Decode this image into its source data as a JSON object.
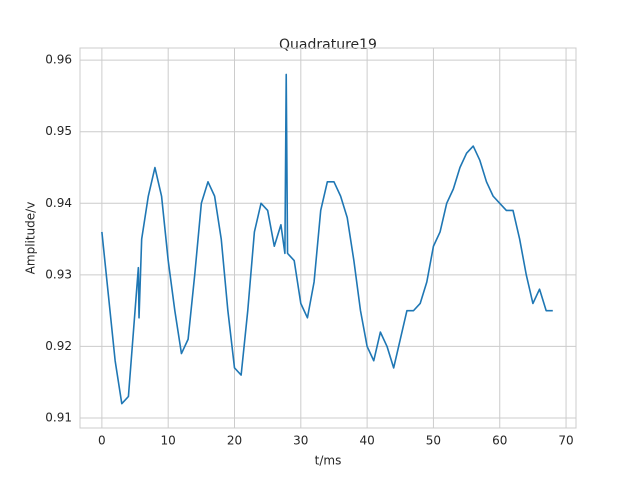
{
  "chart_data": {
    "type": "line",
    "title": "Quadrature19",
    "x_label": "t/ms",
    "y_label": "Amplitude/v",
    "color": "#1f77b4",
    "grid": true,
    "x": [
      0,
      1,
      2,
      3,
      4,
      5,
      5.5,
      5.6,
      6,
      7,
      8,
      9,
      10,
      11,
      12,
      13,
      14,
      15,
      16,
      17,
      18,
      19,
      20,
      21,
      22,
      23,
      24,
      25,
      26,
      27,
      27.6,
      27.8,
      28,
      29,
      30,
      31,
      32,
      33,
      34,
      35,
      36,
      37,
      38,
      39,
      40,
      41,
      42,
      43,
      44,
      45,
      46,
      47,
      48,
      49,
      50,
      51,
      52,
      53,
      54,
      55,
      56,
      57,
      58,
      59,
      60,
      61,
      62,
      63,
      64,
      65,
      66,
      67,
      68
    ],
    "values": [
      0.936,
      0.927,
      0.918,
      0.912,
      0.913,
      0.925,
      0.931,
      0.924,
      0.935,
      0.941,
      0.945,
      0.941,
      0.932,
      0.925,
      0.919,
      0.921,
      0.93,
      0.94,
      0.943,
      0.941,
      0.935,
      0.925,
      0.917,
      0.916,
      0.925,
      0.936,
      0.94,
      0.939,
      0.934,
      0.937,
      0.933,
      0.958,
      0.933,
      0.932,
      0.926,
      0.924,
      0.929,
      0.939,
      0.943,
      0.943,
      0.941,
      0.938,
      0.932,
      0.925,
      0.92,
      0.918,
      0.922,
      0.92,
      0.917,
      0.921,
      0.925,
      0.925,
      0.926,
      0.929,
      0.934,
      0.936,
      0.94,
      0.942,
      0.945,
      0.947,
      0.948,
      0.946,
      0.943,
      0.941,
      0.94,
      0.939,
      0.939,
      0.935,
      0.93,
      0.926,
      0.928,
      0.925,
      0.925
    ],
    "xlim": [
      -3.3,
      71.5
    ],
    "ylim": [
      0.9086,
      0.9617
    ],
    "xticks": [
      0,
      10,
      20,
      30,
      40,
      50,
      60,
      70
    ],
    "yticks": [
      0.91,
      0.92,
      0.93,
      0.94,
      0.95,
      0.96
    ]
  }
}
